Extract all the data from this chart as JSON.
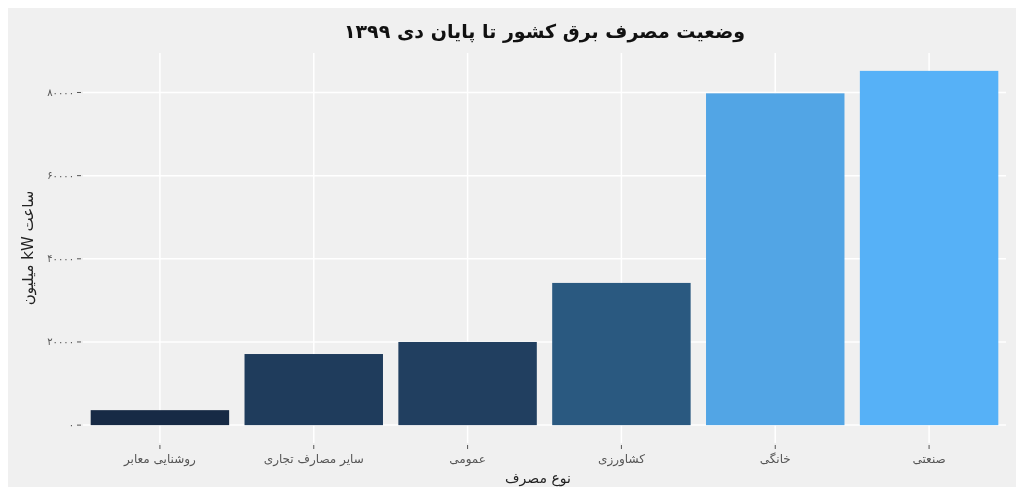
{
  "chart_data": {
    "type": "bar",
    "title": "وضعیت مصرف برق کشور تا پایان دی ۱۳۹۹",
    "xlabel": "نوع مصرف",
    "ylabel": "میلیون kW ساعت",
    "categories": [
      "روشنایی معابر",
      "سایر مصارف تجاری",
      "عمومی",
      "کشاورزی",
      "خانگی",
      "صنعتی"
    ],
    "values": [
      3600,
      17100,
      20000,
      34200,
      79800,
      85200
    ],
    "colors": [
      "#172a45",
      "#1f3c5c",
      "#213f60",
      "#2a5980",
      "#52a5e5",
      "#56b1f7"
    ],
    "ylim": [
      -4300,
      89500
    ],
    "yticks": [
      {
        "value": 0,
        "label": "۰"
      },
      {
        "value": 20000,
        "label": "۲۰۰۰۰"
      },
      {
        "value": 40000,
        "label": "۴۰۰۰۰"
      },
      {
        "value": 60000,
        "label": "۶۰۰۰۰"
      },
      {
        "value": 80000,
        "label": "۸۰۰۰۰"
      }
    ],
    "grid": true
  }
}
